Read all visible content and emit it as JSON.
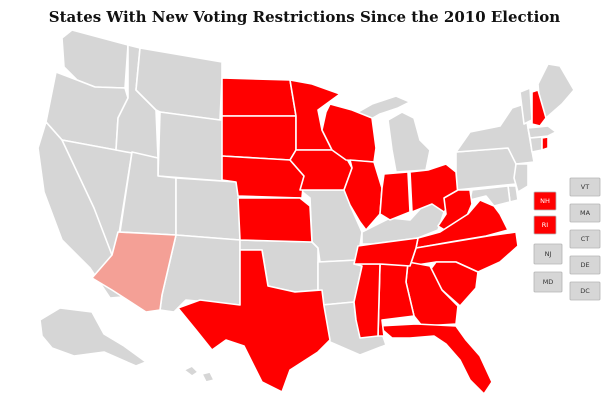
{
  "title": "States With New Voting Restrictions Since the 2010 Election",
  "colors": {
    "restricted": "#ff0000",
    "partial": "#f4a096",
    "none": "#d6d6d6",
    "border": "#ffffff"
  },
  "legend_boxes": {
    "NH": "NH",
    "RI": "RI",
    "NJ": "NJ",
    "MD": "MD",
    "VT": "VT",
    "MA": "MA",
    "CT": "CT",
    "DE": "DE",
    "DC": "DC"
  },
  "states": {
    "restricted": [
      "NH",
      "RI",
      "ND",
      "SD",
      "NE",
      "KS",
      "TX",
      "MN",
      "IA",
      "WI",
      "IL",
      "IN",
      "OH",
      "WV",
      "VA",
      "NC",
      "SC",
      "GA",
      "FL",
      "AL",
      "MS",
      "TN"
    ],
    "partial": [
      "AZ"
    ],
    "none": [
      "WA",
      "OR",
      "CA",
      "NV",
      "ID",
      "MT",
      "WY",
      "UT",
      "CO",
      "NM",
      "OK",
      "MO",
      "AR",
      "LA",
      "KY",
      "MI",
      "PA",
      "NY",
      "VT",
      "ME",
      "MA",
      "CT",
      "NJ",
      "DE",
      "MD",
      "AK",
      "HI"
    ]
  }
}
